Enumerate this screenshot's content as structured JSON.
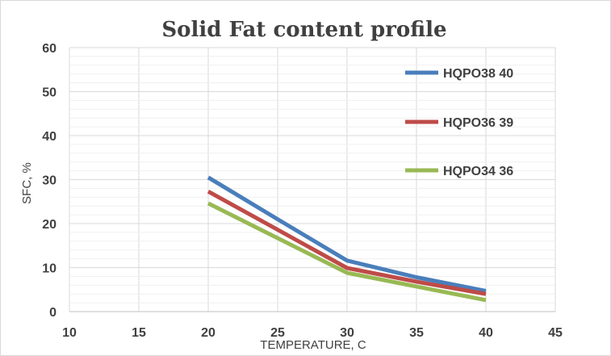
{
  "chart_data": {
    "type": "line",
    "title": "Solid Fat content profile",
    "xlabel": "TEMPERATURE, C",
    "ylabel": "SFC, %",
    "xlim": [
      10,
      45
    ],
    "ylim": [
      0,
      60
    ],
    "xticks": [
      "10",
      "15",
      "20",
      "25",
      "30",
      "35",
      "40",
      "45"
    ],
    "yticks": [
      "0",
      "10",
      "20",
      "30",
      "40",
      "50",
      "60"
    ],
    "grid": true,
    "legend_position": "top-right",
    "series": [
      {
        "name": "HQPO38 40",
        "color": "#4a7ebb",
        "x": [
          20,
          25,
          30,
          35,
          40
        ],
        "y": [
          30.5,
          21,
          11.6,
          7.8,
          4.7
        ]
      },
      {
        "name": "HQPO36 39",
        "color": "#be4b48",
        "x": [
          20,
          25,
          30,
          35,
          40
        ],
        "y": [
          27.3,
          18.6,
          9.9,
          6.8,
          4.0
        ]
      },
      {
        "name": "HQPO34 36",
        "color": "#98b954",
        "x": [
          20,
          25,
          30,
          35,
          40
        ],
        "y": [
          24.6,
          16.7,
          8.8,
          5.7,
          2.6
        ]
      }
    ]
  }
}
